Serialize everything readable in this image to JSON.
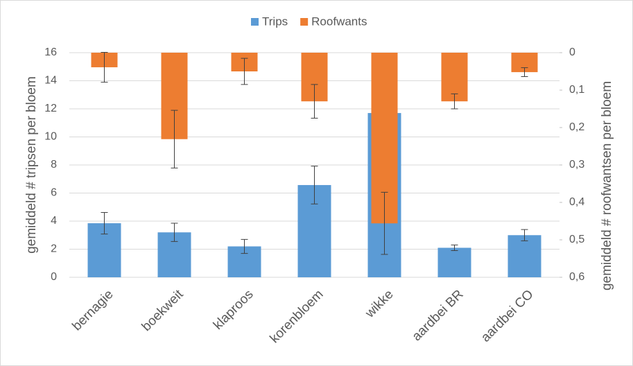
{
  "chart_data": {
    "type": "bar",
    "categories": [
      "bernagie",
      "boekweit",
      "klaproos",
      "korenbloem",
      "wikke",
      "aardbei BR",
      "aardbei CO"
    ],
    "series": [
      {
        "name": "Trips",
        "color": "#5b9bd5",
        "values": [
          3.85,
          3.2,
          2.2,
          6.57,
          11.7,
          2.1,
          3.0
        ],
        "errors": [
          0.77,
          0.65,
          0.5,
          1.35,
          null,
          0.2,
          0.4
        ]
      },
      {
        "name": "Roofwants",
        "color": "#ed7d31",
        "axis": "y2",
        "values": [
          0.039,
          0.231,
          0.05,
          0.13,
          0.456,
          0.13,
          0.052
        ],
        "errors": [
          0.04,
          0.077,
          0.035,
          0.045,
          0.083,
          0.02,
          0.012
        ]
      }
    ],
    "ylabel": "gemiddeld # tripsen per bloem",
    "y2label": "gemiddeld # roofwantsen per bloem",
    "ylim": [
      0,
      16
    ],
    "yticks": [
      0,
      2,
      4,
      6,
      8,
      10,
      12,
      14,
      16
    ],
    "y2lim": [
      0,
      0.6
    ],
    "y2_inverted": true,
    "y2ticks": [
      0,
      {
        "value": 0.1,
        "label": "0,1"
      },
      {
        "value": 0.2,
        "label": "0,2"
      },
      {
        "value": 0.3,
        "label": "0,3"
      },
      {
        "value": 0.4,
        "label": "0,4"
      },
      {
        "value": 0.5,
        "label": "0,5"
      },
      {
        "value": 0.6,
        "label": "0,6"
      }
    ],
    "grid": true,
    "legend": "top"
  }
}
